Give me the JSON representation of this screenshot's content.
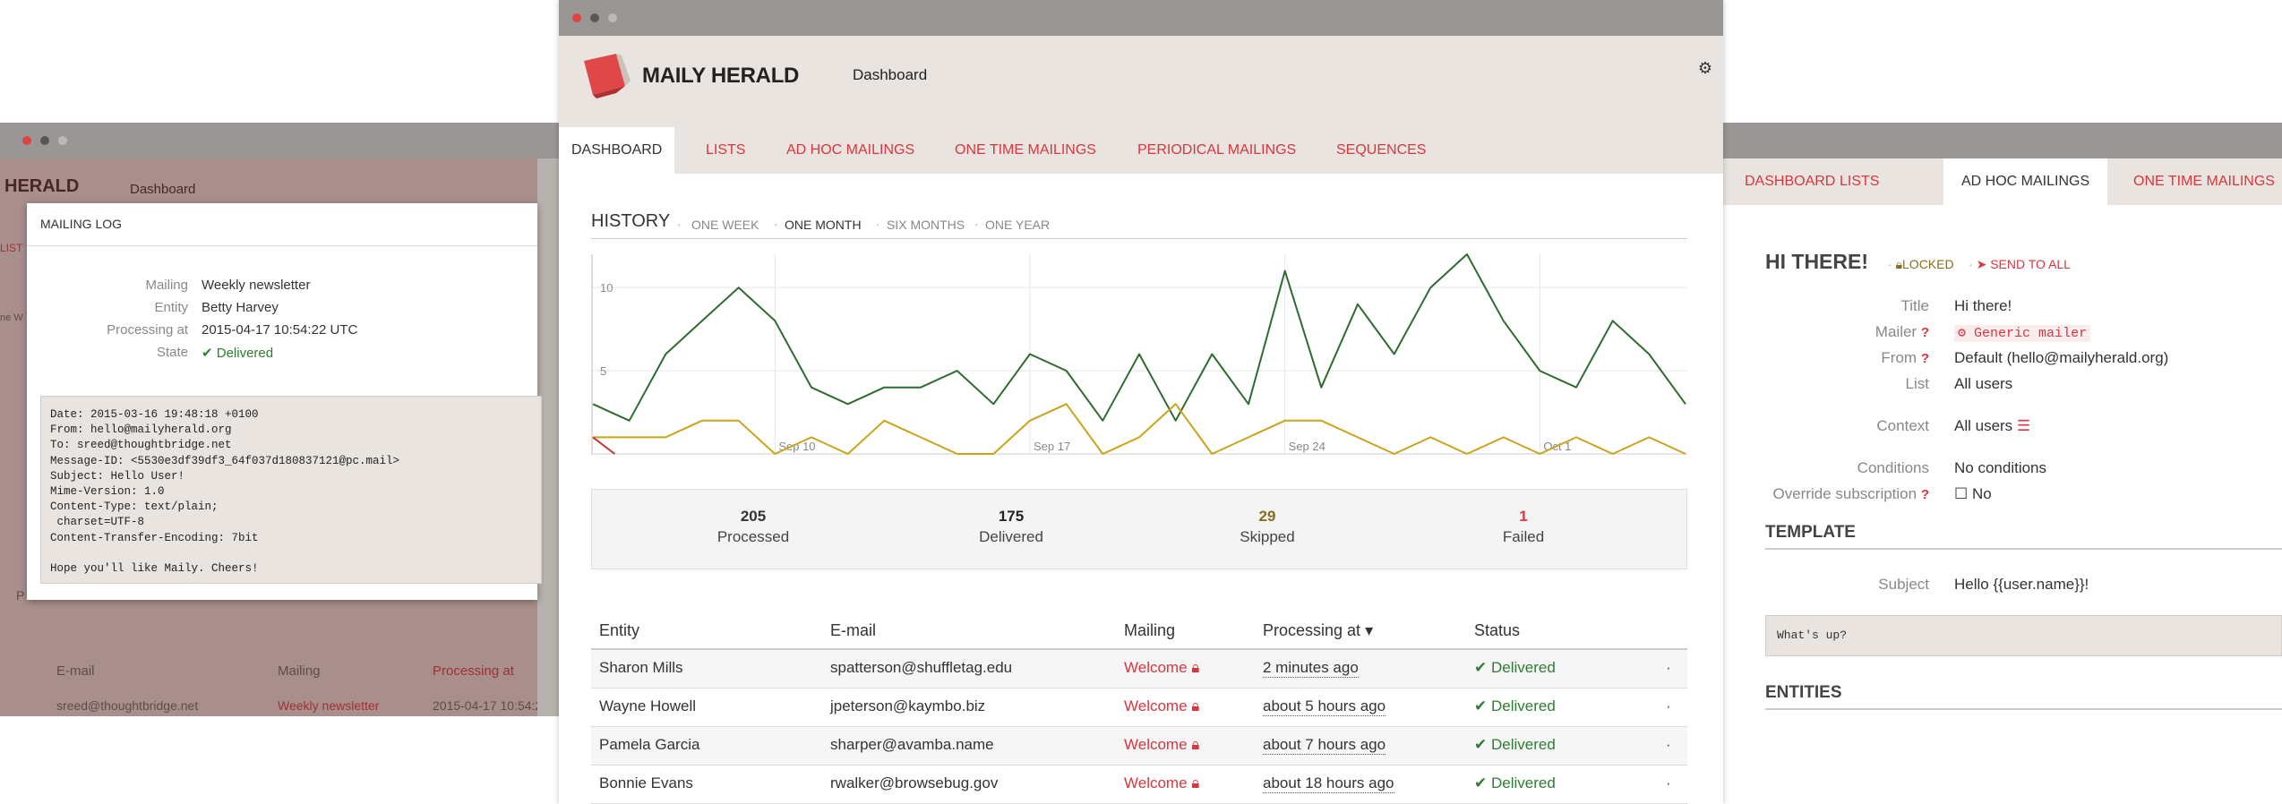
{
  "left_window": {
    "bg_brand": "HERALD",
    "bg_dashboard": "Dashboard",
    "bg_list_short": "LIST",
    "bg_side_text": "ne W",
    "bg_p": "P",
    "bg_table_headers": [
      "E-mail",
      "Mailing",
      "Processing at"
    ],
    "bg_row": {
      "email": "sreed@thoughtbridge.net",
      "mailing": "Weekly newsletter",
      "processing_at": "2015-04-17 10:54:2"
    },
    "modal": {
      "title": "MAILING LOG",
      "fields": [
        {
          "key": "Mailing",
          "value": "Weekly newsletter"
        },
        {
          "key": "Entity",
          "value": "Betty Harvey"
        },
        {
          "key": "Processing at",
          "value": "2015-04-17 10:54:22 UTC"
        },
        {
          "key": "State",
          "value": "Delivered"
        }
      ],
      "message_source": "Date: 2015-03-16 19:48:18 +0100\nFrom: hello@mailyherald.org\nTo: sreed@thoughtbridge.net\nMessage-ID: <5530e3df39df3_64f037d180837121@pc.mail>\nSubject: Hello User!\nMime-Version: 1.0\nContent-Type: text/plain;\n charset=UTF-8\nContent-Transfer-Encoding: 7bit\n\nHope you'll like Maily. Cheers!"
    }
  },
  "center_window": {
    "brand": "MAILY HERALD",
    "header_dashboard": "Dashboard",
    "nav": [
      "DASHBOARD",
      "LISTS",
      "AD HOC MAILINGS",
      "ONE TIME MAILINGS",
      "PERIODICAL MAILINGS",
      "SEQUENCES"
    ],
    "history": {
      "title": "HISTORY",
      "ranges": [
        "ONE WEEK",
        "ONE MONTH",
        "SIX MONTHS",
        "ONE YEAR"
      ],
      "active_range": "ONE MONTH"
    },
    "stats": [
      {
        "value": "205",
        "label": "Processed",
        "color": "#333333"
      },
      {
        "value": "175",
        "label": "Delivered",
        "color": "#222222"
      },
      {
        "value": "29",
        "label": "Skipped",
        "color": "#8a6d1a"
      },
      {
        "value": "1",
        "label": "Failed",
        "color": "#d9363e"
      }
    ],
    "table": {
      "headers": [
        "Entity",
        "E-mail",
        "Mailing",
        "Processing at",
        "Status"
      ],
      "rows": [
        {
          "entity": "Sharon Mills",
          "email": "spatterson@shuffletag.edu",
          "mailing": "Welcome",
          "processing_at": "2 minutes ago",
          "status": "Delivered",
          "dot": "·"
        },
        {
          "entity": "Wayne Howell",
          "email": "jpeterson@kaymbo.biz",
          "mailing": "Welcome",
          "processing_at": "about 5 hours ago",
          "status": "Delivered",
          "dot": "·"
        },
        {
          "entity": "Pamela Garcia",
          "email": "sharper@avamba.name",
          "mailing": "Welcome",
          "processing_at": "about 7 hours ago",
          "status": "Delivered",
          "dot": "·"
        },
        {
          "entity": "Bonnie Evans",
          "email": "rwalker@browsebug.gov",
          "mailing": "Welcome",
          "processing_at": "about 18 hours ago",
          "status": "Delivered",
          "dot": "·"
        }
      ]
    }
  },
  "chart_data": {
    "type": "line",
    "x_tick_labels": [
      "Sep 10",
      "Sep 17",
      "Sep 24",
      "Oct 1"
    ],
    "x_tick_index": [
      5,
      12,
      19,
      26
    ],
    "y_tick_labels": [
      "5",
      "10"
    ],
    "y_ticks": [
      5,
      10
    ],
    "ylim": [
      0,
      12
    ],
    "grid": true,
    "series": [
      {
        "color": "#2f6b2f",
        "values": [
          3,
          2,
          6,
          8,
          10,
          8,
          4,
          3,
          4,
          4,
          5,
          3,
          6,
          5,
          2,
          6,
          2,
          6,
          3,
          11,
          4,
          9,
          6,
          10,
          12,
          8,
          5,
          4,
          8,
          6,
          3
        ]
      },
      {
        "color": "#c9a41c",
        "values": [
          1,
          1,
          1,
          2,
          2,
          0,
          1,
          0,
          2,
          1,
          0,
          0,
          2,
          3,
          0,
          1,
          3,
          0,
          1,
          2,
          2,
          1,
          0,
          1,
          0,
          1,
          0,
          1,
          0,
          1,
          0
        ]
      },
      {
        "color": "#c0392b",
        "values": [
          1,
          0
        ]
      }
    ]
  },
  "right_window": {
    "nav": [
      "DASHBOARD",
      "LISTS",
      "AD HOC MAILINGS",
      "ONE TIME MAILINGS"
    ],
    "title": "HI THERE!",
    "locked": "LOCKED",
    "send_to_all": "SEND TO ALL",
    "fields": [
      {
        "key": "Title",
        "value": "Hi there!"
      },
      {
        "key": "Mailer",
        "value": "Generic mailer"
      },
      {
        "key": "From",
        "value": "Default (hello@mailyherald.org)"
      },
      {
        "key": "List",
        "value": "All users"
      },
      {
        "key": "Context",
        "value": "All users"
      },
      {
        "key": "Conditions",
        "value": "No conditions"
      },
      {
        "key": "Override subscription",
        "value": "No"
      }
    ],
    "template_title": "TEMPLATE",
    "subject_key": "Subject",
    "subject_value": "Hello {{user.name}}!",
    "body": "What's up?",
    "entities_title": "ENTITIES"
  },
  "icons": {
    "delivered": "check-icon",
    "mailing_lock": "lock-icon",
    "settings": "gear-icon",
    "mailer": "gears-icon",
    "context": "list-icon",
    "send": "paper-plane-icon"
  }
}
